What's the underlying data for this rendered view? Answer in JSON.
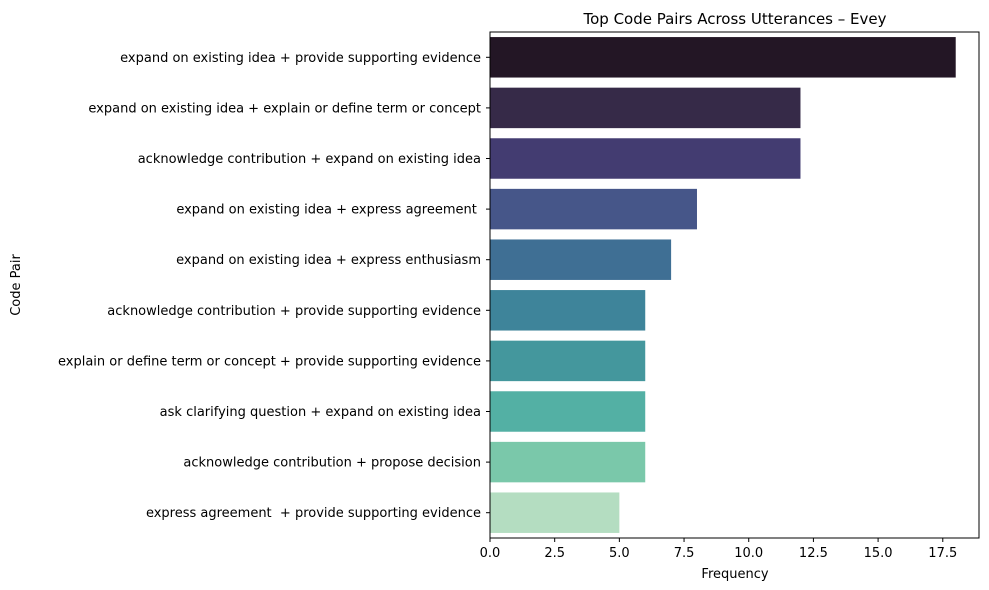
{
  "chart_data": {
    "type": "bar",
    "orientation": "horizontal",
    "title": "Top Code Pairs Across Utterances – Evey",
    "xlabel": "Frequency",
    "ylabel": "Code Pair",
    "xlim": [
      0,
      18.9
    ],
    "xticks": [
      0,
      2.5,
      5,
      7.5,
      10,
      12.5,
      15,
      17.5
    ],
    "xtick_labels": [
      "0.0",
      "2.5",
      "5.0",
      "7.5",
      "10.0",
      "12.5",
      "15.0",
      "17.5"
    ],
    "grid": false,
    "categories": [
      "expand on existing idea + provide supporting evidence",
      "expand on existing idea + explain or define term or concept",
      "acknowledge contribution + expand on existing idea",
      "expand on existing idea + express agreement ",
      "expand on existing idea + express enthusiasm",
      "acknowledge contribution + provide supporting evidence",
      "explain or define term or concept + provide supporting evidence",
      "ask clarifying question + expand on existing idea",
      "acknowledge contribution + propose decision",
      "express agreement  + provide supporting evidence"
    ],
    "values": [
      18,
      12,
      12,
      8,
      7,
      6,
      6,
      6,
      6,
      5
    ],
    "colors": [
      "#231625",
      "#362a48",
      "#433c71",
      "#465689",
      "#3f6f94",
      "#3e849a",
      "#44979d",
      "#53b0a4",
      "#7ac8aa",
      "#b4ddc1"
    ]
  }
}
